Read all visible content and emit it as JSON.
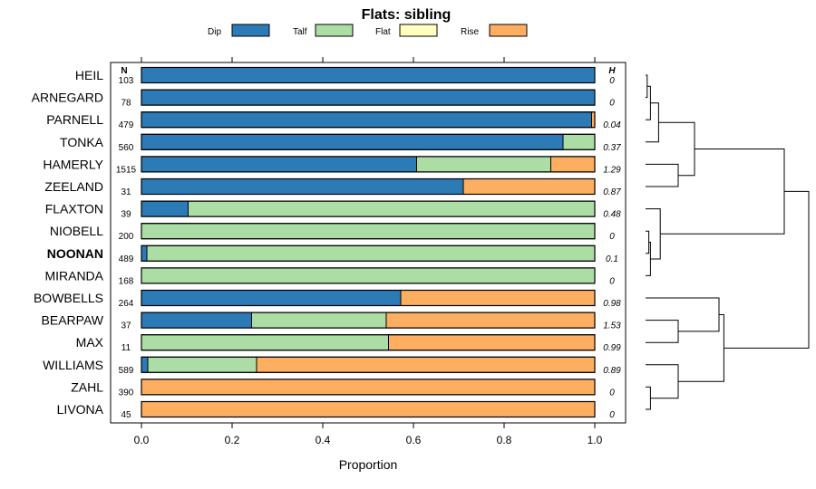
{
  "chart_data": {
    "type": "bar",
    "stacked": true,
    "orientation": "horizontal",
    "title": "Flats: sibling",
    "xlabel": "Proportion",
    "xlim": [
      -0.07,
      1.07
    ],
    "xticks": [
      0.0,
      0.2,
      0.4,
      0.6,
      0.8,
      1.0
    ],
    "xtick_labels": [
      "0.0",
      "0.2",
      "0.4",
      "0.6",
      "0.8",
      "1.0"
    ],
    "legend": {
      "position": "top",
      "entries": [
        {
          "name": "Dip",
          "color": "#2c7bb6"
        },
        {
          "name": "Talf",
          "color": "#abdda4"
        },
        {
          "name": "Flat",
          "color": "#ffffbf"
        },
        {
          "name": "Rise",
          "color": "#fdae61"
        }
      ]
    },
    "n_header": "N",
    "h_header": "H",
    "categories": [
      "HEIL",
      "ARNEGARD",
      "PARNELL",
      "TONKA",
      "HAMERLY",
      "ZEELAND",
      "FLAXTON",
      "NIOBELL",
      "NOONAN",
      "MIRANDA",
      "BOWBELLS",
      "BEARPAW",
      "MAX",
      "WILLIAMS",
      "ZAHL",
      "LIVONA"
    ],
    "bold_category": "NOONAN",
    "n_values": [
      "103",
      "78",
      "479",
      "560",
      "1515",
      "31",
      "39",
      "200",
      "489",
      "168",
      "264",
      "37",
      "11",
      "589",
      "390",
      "45"
    ],
    "h_values": [
      "0",
      "0",
      "0.04",
      "0.37",
      "1.29",
      "0.87",
      "0.48",
      "0",
      "0.1",
      "0",
      "0.98",
      "1.53",
      "0.99",
      "0.89",
      "0",
      "0"
    ],
    "series": [
      {
        "name": "Dip",
        "values": [
          1.0,
          1.0,
          0.993,
          0.93,
          0.607,
          0.71,
          0.103,
          0.0,
          0.012,
          0.0,
          0.572,
          0.243,
          0.0,
          0.014,
          0.0,
          0.0
        ]
      },
      {
        "name": "Talf",
        "values": [
          0.0,
          0.0,
          0.0,
          0.07,
          0.296,
          0.0,
          0.897,
          1.0,
          0.988,
          1.0,
          0.0,
          0.297,
          0.545,
          0.24,
          0.0,
          0.0
        ]
      },
      {
        "name": "Flat",
        "values": [
          0,
          0,
          0,
          0,
          0,
          0,
          0,
          0,
          0,
          0,
          0,
          0,
          0,
          0,
          0,
          0
        ]
      },
      {
        "name": "Rise",
        "values": [
          0.0,
          0.0,
          0.007,
          0.0,
          0.097,
          0.29,
          0.0,
          0.0,
          0.0,
          0.0,
          0.428,
          0.46,
          0.455,
          0.746,
          1.0,
          1.0
        ]
      }
    ],
    "dendrogram": {
      "leaves": [
        "HEIL",
        "ARNEGARD",
        "PARNELL",
        "TONKA",
        "HAMERLY",
        "ZEELAND",
        "FLAXTON",
        "NIOBELL",
        "NOONAN",
        "MIRANDA",
        "BOWBELLS",
        "BEARPAW",
        "MAX",
        "WILLIAMS",
        "ZAHL",
        "LIVONA"
      ],
      "merges": [
        [
          0,
          1,
          0.01
        ],
        [
          -1,
          2,
          0.03
        ],
        [
          -2,
          3,
          0.08
        ],
        [
          4,
          5,
          0.2
        ],
        [
          -3,
          -4,
          0.3
        ],
        [
          7,
          8,
          0.02
        ],
        [
          -6,
          9,
          0.03
        ],
        [
          6,
          -7,
          0.09
        ],
        [
          -5,
          -8,
          0.85
        ],
        [
          11,
          12,
          0.2
        ],
        [
          10,
          -10,
          0.45
        ],
        [
          14,
          15,
          0.03
        ],
        [
          13,
          -12,
          0.2
        ],
        [
          -11,
          -13,
          0.48
        ],
        [
          -9,
          -14,
          1.0
        ]
      ]
    }
  }
}
